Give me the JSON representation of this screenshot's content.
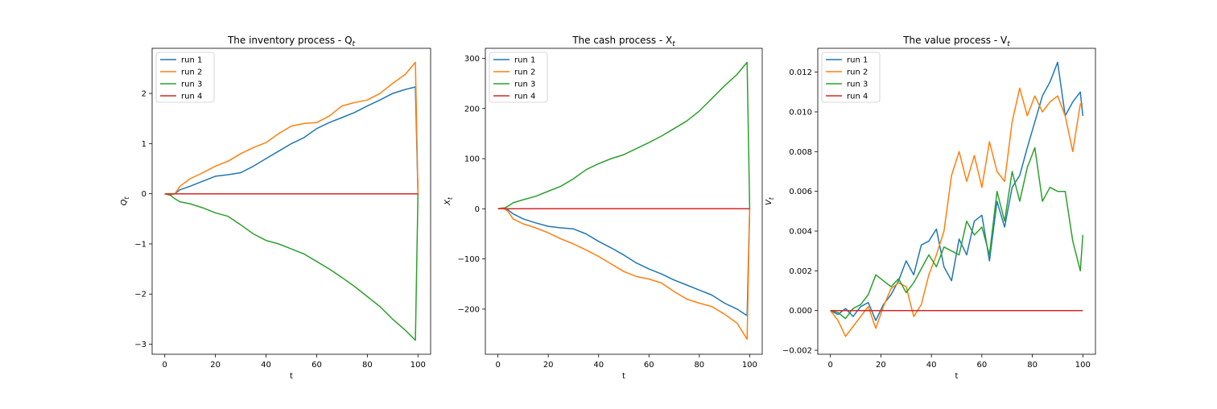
{
  "colors": {
    "run1": "#1f77b4",
    "run2": "#ff7f0e",
    "run3": "#2ca02c",
    "run4": "#d62728"
  },
  "chart_data": [
    {
      "type": "line",
      "title": "The inventory process - Q",
      "title_subscript": "t",
      "xlabel": "t",
      "ylabel": "Q",
      "ylabel_subscript": "t",
      "xlim": [
        -5,
        105
      ],
      "ylim": [
        -3.2,
        2.9
      ],
      "xticks": [
        0,
        20,
        40,
        60,
        80,
        100
      ],
      "yticks": [
        -3,
        -2,
        -1,
        0,
        1,
        2
      ],
      "ytick_labels": [
        "−3",
        "−2",
        "−1",
        "0",
        "1",
        "2"
      ],
      "legend": "top-left",
      "series": [
        {
          "name": "run 1",
          "x": [
            0,
            2,
            4,
            6,
            10,
            15,
            20,
            25,
            30,
            35,
            40,
            45,
            50,
            55,
            60,
            65,
            70,
            75,
            80,
            85,
            90,
            95,
            99,
            100
          ],
          "values": [
            0,
            -0.02,
            0.0,
            0.08,
            0.15,
            0.25,
            0.35,
            0.38,
            0.42,
            0.55,
            0.7,
            0.85,
            1.0,
            1.12,
            1.3,
            1.42,
            1.52,
            1.62,
            1.75,
            1.87,
            2.0,
            2.08,
            2.13,
            0
          ]
        },
        {
          "name": "run 2",
          "x": [
            0,
            2,
            4,
            6,
            10,
            15,
            20,
            25,
            30,
            35,
            40,
            45,
            50,
            55,
            60,
            65,
            70,
            75,
            80,
            85,
            90,
            95,
            99,
            100
          ],
          "values": [
            0,
            -0.03,
            0.0,
            0.15,
            0.3,
            0.42,
            0.55,
            0.65,
            0.8,
            0.92,
            1.02,
            1.2,
            1.35,
            1.4,
            1.42,
            1.55,
            1.75,
            1.82,
            1.87,
            2.0,
            2.2,
            2.38,
            2.62,
            0
          ]
        },
        {
          "name": "run 3",
          "x": [
            0,
            2,
            4,
            6,
            10,
            15,
            20,
            25,
            30,
            35,
            40,
            45,
            50,
            55,
            60,
            65,
            70,
            75,
            80,
            85,
            90,
            95,
            99,
            100
          ],
          "values": [
            0,
            -0.02,
            -0.1,
            -0.16,
            -0.2,
            -0.28,
            -0.38,
            -0.45,
            -0.62,
            -0.8,
            -0.93,
            -1.0,
            -1.1,
            -1.2,
            -1.35,
            -1.5,
            -1.67,
            -1.85,
            -2.05,
            -2.25,
            -2.5,
            -2.72,
            -2.92,
            0
          ]
        },
        {
          "name": "run 4",
          "x": [
            0,
            100
          ],
          "values": [
            0,
            0
          ]
        }
      ]
    },
    {
      "type": "line",
      "title": "The cash process - X",
      "title_subscript": "t",
      "xlabel": "t",
      "ylabel": "X",
      "ylabel_subscript": "t",
      "xlim": [
        -5,
        105
      ],
      "ylim": [
        -290,
        320
      ],
      "xticks": [
        0,
        20,
        40,
        60,
        80,
        100
      ],
      "yticks": [
        -200,
        -100,
        0,
        100,
        200,
        300
      ],
      "ytick_labels": [
        "−200",
        "−100",
        "0",
        "100",
        "200",
        "300"
      ],
      "legend": "top-left",
      "series": [
        {
          "name": "run 1",
          "x": [
            0,
            2,
            4,
            6,
            10,
            15,
            20,
            25,
            30,
            35,
            40,
            45,
            50,
            55,
            60,
            65,
            70,
            75,
            80,
            85,
            90,
            95,
            99,
            100
          ],
          "values": [
            0,
            2,
            -2,
            -10,
            -20,
            -28,
            -35,
            -38,
            -40,
            -50,
            -65,
            -78,
            -92,
            -108,
            -120,
            -130,
            -142,
            -152,
            -162,
            -172,
            -188,
            -200,
            -213,
            0
          ]
        },
        {
          "name": "run 2",
          "x": [
            0,
            2,
            4,
            6,
            10,
            15,
            20,
            25,
            30,
            35,
            40,
            45,
            50,
            55,
            60,
            65,
            70,
            75,
            80,
            85,
            90,
            95,
            99,
            100
          ],
          "values": [
            0,
            2,
            -5,
            -20,
            -30,
            -38,
            -48,
            -60,
            -70,
            -82,
            -95,
            -110,
            -125,
            -135,
            -140,
            -148,
            -165,
            -180,
            -188,
            -195,
            -210,
            -228,
            -260,
            0
          ]
        },
        {
          "name": "run 3",
          "x": [
            0,
            2,
            4,
            6,
            10,
            15,
            20,
            25,
            30,
            35,
            40,
            45,
            50,
            55,
            60,
            65,
            70,
            75,
            80,
            85,
            90,
            95,
            99,
            100
          ],
          "values": [
            0,
            0,
            5,
            12,
            18,
            25,
            35,
            45,
            60,
            78,
            90,
            100,
            108,
            120,
            132,
            145,
            160,
            175,
            195,
            220,
            245,
            268,
            292,
            0
          ]
        },
        {
          "name": "run 4",
          "x": [
            0,
            100
          ],
          "values": [
            0,
            0
          ]
        }
      ]
    },
    {
      "type": "line",
      "title": "The value process - V",
      "title_subscript": "t",
      "xlabel": "t",
      "ylabel": "V",
      "ylabel_subscript": "t",
      "xlim": [
        -5,
        105
      ],
      "ylim": [
        -0.0022,
        0.0132
      ],
      "xticks": [
        0,
        20,
        40,
        60,
        80,
        100
      ],
      "yticks": [
        -0.002,
        0.0,
        0.002,
        0.004,
        0.006,
        0.008,
        0.01,
        0.012
      ],
      "ytick_labels": [
        "−0.002",
        "0.000",
        "0.002",
        "0.004",
        "0.006",
        "0.008",
        "0.010",
        "0.012"
      ],
      "legend": "top-left",
      "series": [
        {
          "name": "run 1",
          "x": [
            0,
            3,
            6,
            9,
            12,
            15,
            18,
            21,
            24,
            27,
            30,
            33,
            36,
            39,
            42,
            45,
            48,
            51,
            54,
            57,
            60,
            63,
            66,
            69,
            72,
            75,
            78,
            81,
            84,
            87,
            90,
            93,
            96,
            99,
            100
          ],
          "values": [
            0,
            -0.0002,
            0.0001,
            -0.0003,
            0.0002,
            0.0004,
            -0.0005,
            0.0003,
            0.0008,
            0.0015,
            0.0025,
            0.0018,
            0.0033,
            0.0035,
            0.0041,
            0.0022,
            0.0015,
            0.0036,
            0.0028,
            0.0045,
            0.0048,
            0.0025,
            0.0055,
            0.0042,
            0.0062,
            0.0068,
            0.0082,
            0.0095,
            0.0108,
            0.0115,
            0.0125,
            0.0098,
            0.0105,
            0.011,
            0.0098
          ]
        },
        {
          "name": "run 2",
          "x": [
            0,
            3,
            6,
            9,
            12,
            15,
            18,
            21,
            24,
            27,
            30,
            33,
            36,
            39,
            42,
            45,
            48,
            51,
            54,
            57,
            60,
            63,
            66,
            69,
            72,
            75,
            78,
            81,
            84,
            87,
            90,
            93,
            96,
            99,
            100
          ],
          "values": [
            0,
            -0.0005,
            -0.0013,
            -0.0008,
            -0.0003,
            0.0002,
            -0.0009,
            0.0002,
            0.0011,
            0.0014,
            0.0012,
            -0.0003,
            0.0003,
            0.0018,
            0.0028,
            0.004,
            0.0068,
            0.008,
            0.0065,
            0.0078,
            0.0062,
            0.0085,
            0.007,
            0.0065,
            0.0095,
            0.0112,
            0.0098,
            0.0108,
            0.01,
            0.0105,
            0.0108,
            0.0098,
            0.008,
            0.0104,
            0.0104
          ]
        },
        {
          "name": "run 3",
          "x": [
            0,
            3,
            6,
            9,
            12,
            15,
            18,
            21,
            24,
            27,
            30,
            33,
            36,
            39,
            42,
            45,
            48,
            51,
            54,
            57,
            60,
            63,
            66,
            69,
            72,
            75,
            78,
            81,
            84,
            87,
            90,
            93,
            96,
            99,
            100
          ],
          "values": [
            0,
            -0.0001,
            -0.0004,
            0.0001,
            0.0003,
            0.0008,
            0.0018,
            0.0015,
            0.0012,
            0.0016,
            0.0009,
            0.0014,
            0.0021,
            0.0028,
            0.0022,
            0.0032,
            0.003,
            0.0028,
            0.0045,
            0.0038,
            0.0042,
            0.0028,
            0.006,
            0.0045,
            0.007,
            0.0055,
            0.0072,
            0.0082,
            0.0055,
            0.0062,
            0.006,
            0.006,
            0.0035,
            0.002,
            0.0038
          ]
        },
        {
          "name": "run 4",
          "x": [
            0,
            100
          ],
          "values": [
            0,
            0
          ]
        }
      ]
    }
  ]
}
